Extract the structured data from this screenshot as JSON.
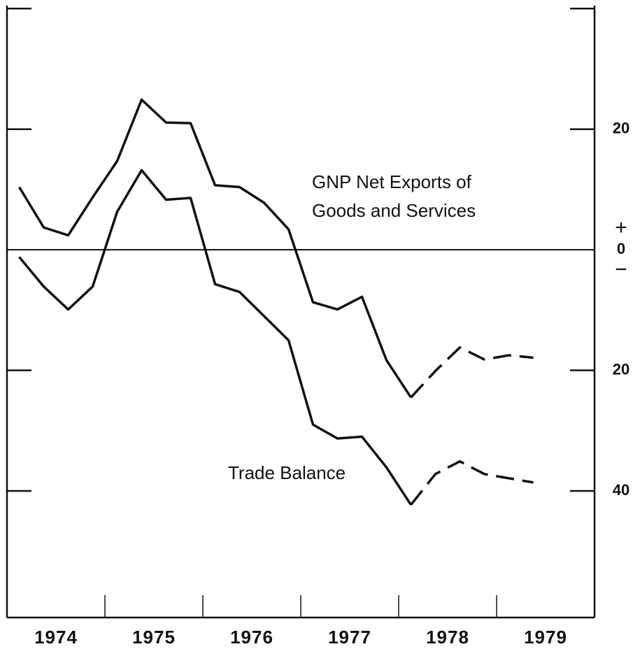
{
  "chart_data": {
    "type": "line",
    "x": [
      1974.125,
      1974.375,
      1974.625,
      1974.875,
      1975.125,
      1975.375,
      1975.625,
      1975.875,
      1976.125,
      1976.375,
      1976.625,
      1976.875,
      1977.125,
      1977.375,
      1977.625,
      1977.875,
      1978.125,
      1978.375,
      1978.625,
      1978.875,
      1979.125,
      1979.375
    ],
    "series": [
      {
        "name_lines": [
          "GNP Net Exports of",
          "Goods and Services"
        ],
        "color": "#111111",
        "dashed_from_index": 16,
        "values": [
          10.4,
          3.7,
          2.4,
          8.7,
          14.7,
          24.9,
          21.1,
          21.0,
          10.7,
          10.4,
          7.8,
          3.4,
          -8.7,
          -9.9,
          -7.8,
          -18.3,
          -24.5,
          -20.1,
          -16.2,
          -18.2,
          -17.5,
          -17.9
        ]
      },
      {
        "name": "Trade Balance",
        "color": "#111111",
        "dashed_from_index": 16,
        "values": [
          -1.2,
          -6.1,
          -9.9,
          -6.1,
          6.3,
          13.2,
          8.3,
          8.6,
          -5.7,
          -7.0,
          -11.0,
          -15.0,
          -29.0,
          -31.3,
          -31.0,
          -36.1,
          -42.3,
          -37.2,
          -35.1,
          -37.2,
          -37.9,
          -38.6
        ]
      }
    ],
    "xlim": [
      1974,
      1980
    ],
    "xticks": [
      {
        "value": 1974.5,
        "label": "1974"
      },
      {
        "value": 1975.5,
        "label": "1975"
      },
      {
        "value": 1976.5,
        "label": "1976"
      },
      {
        "value": 1977.5,
        "label": "1977"
      },
      {
        "value": 1978.5,
        "label": "1978"
      },
      {
        "value": 1979.5,
        "label": "1979"
      }
    ],
    "x_separators": [
      1975,
      1976,
      1977,
      1978,
      1979
    ],
    "ylim": [
      -61,
      40.5
    ],
    "yticks": [
      {
        "value": 40,
        "label": ""
      },
      20,
      0,
      {
        "value": -20,
        "label": "20"
      },
      {
        "value": -40,
        "label": "40"
      }
    ],
    "zero_signs": [
      "+",
      "−"
    ]
  }
}
